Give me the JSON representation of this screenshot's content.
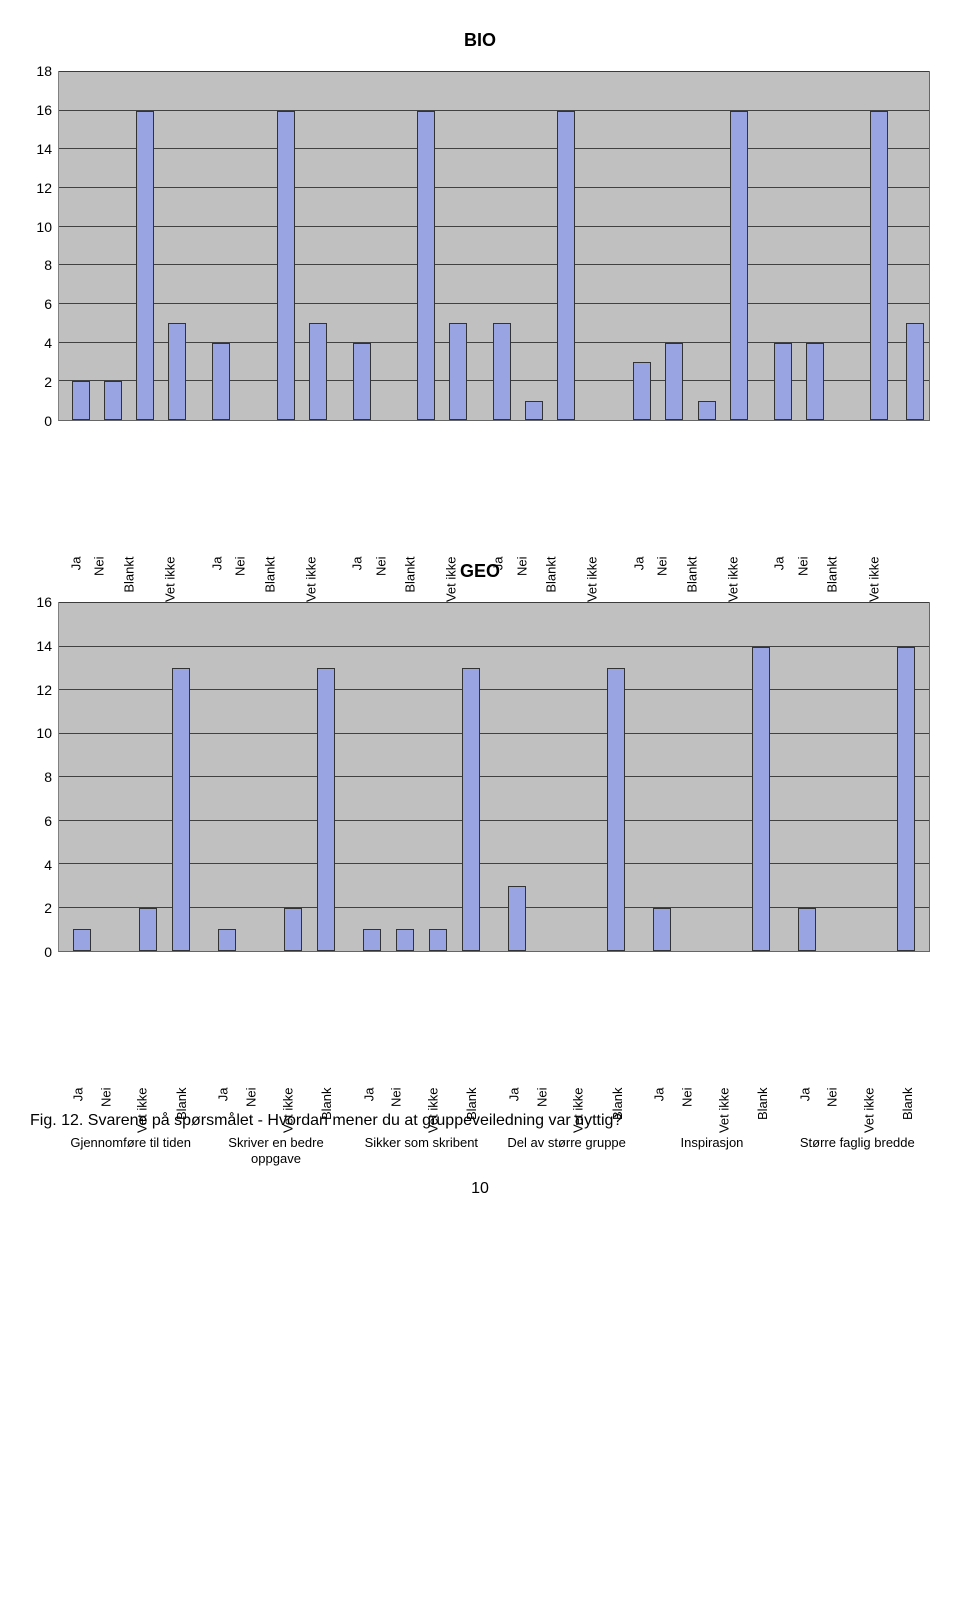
{
  "bar_color": "#99a4e2",
  "bar_border": "#333333",
  "plot_bg": "#c0c0c0",
  "grid_color": "#333333",
  "charts": [
    {
      "id": "bio",
      "title": "BIO",
      "ymax": 18,
      "ytick_step": 2,
      "categories": [
        "Ja",
        "Nei",
        "Blankt",
        "Vet ikke"
      ],
      "groups": [
        {
          "label": "Gjennomføre til tiden",
          "values": [
            2,
            2,
            16,
            5
          ]
        },
        {
          "label": "Skriver en bedre oppgave",
          "values": [
            4,
            0,
            16,
            5
          ]
        },
        {
          "label": "Sikker som skribent",
          "values": [
            4,
            0,
            16,
            5
          ]
        },
        {
          "label": "Del av større gruppe",
          "values": [
            5,
            1,
            16,
            0
          ]
        },
        {
          "label": "Inspirasjon",
          "values": [
            3,
            4,
            1,
            16
          ]
        },
        {
          "label": "Større faglig bredde",
          "values": [
            4,
            4,
            0,
            16
          ]
        }
      ],
      "extra_bars": [
        5
      ]
    },
    {
      "id": "geo",
      "title": "GEO",
      "ymax": 16,
      "ytick_step": 2,
      "categories": [
        "Ja",
        "Nei",
        "Vet ikke",
        "Blank"
      ],
      "groups": [
        {
          "label": "Gjennomføre til tiden",
          "values": [
            1,
            0,
            2,
            13
          ]
        },
        {
          "label": "Skriver en bedre oppgave",
          "values": [
            1,
            0,
            2,
            13
          ]
        },
        {
          "label": "Sikker som skribent",
          "values": [
            1,
            1,
            1,
            13
          ]
        },
        {
          "label": "Del av større gruppe",
          "values": [
            3,
            0,
            0,
            13
          ]
        },
        {
          "label": "Inspirasjon",
          "values": [
            2,
            0,
            0,
            14
          ]
        },
        {
          "label": "Større faglig bredde",
          "values": [
            2,
            0,
            0,
            14
          ]
        }
      ],
      "extra_bars": []
    }
  ],
  "figcaption": "Fig. 12. Svarene på spørsmålet - Hvordan mener du at gruppeveiledning var nyttig?",
  "pagenum": "10"
}
